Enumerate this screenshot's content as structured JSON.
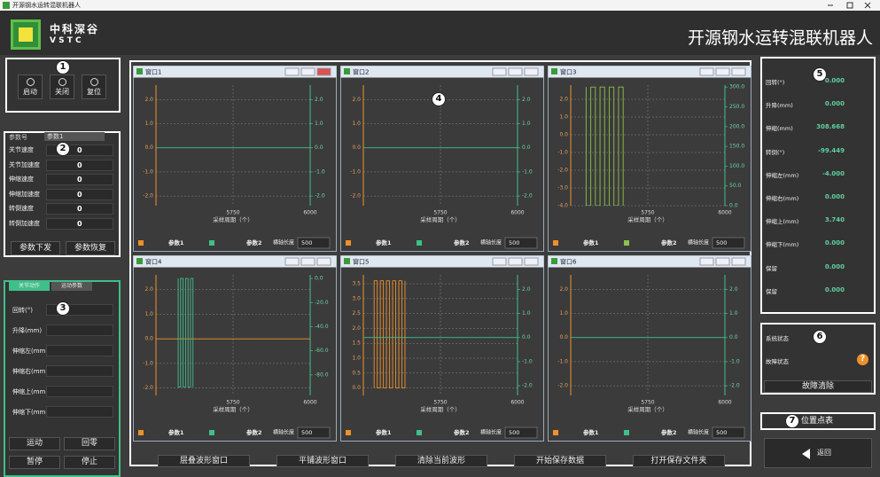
{
  "window_title": "开源钢水运转混联机器人",
  "header": {
    "logo_name": "中科深谷",
    "logo_abbr": "V S T C",
    "title": "开源钢水运转混联机器人"
  },
  "panel1": {
    "badge": "1",
    "buttons": [
      "启动",
      "关闭",
      "复位"
    ]
  },
  "panel2": {
    "badge": "2",
    "selector_label": "参数号",
    "selector_value": "参数1",
    "rows": [
      {
        "label": "关节速度",
        "value": "0"
      },
      {
        "label": "关节加速度",
        "value": "0"
      },
      {
        "label": "伸缩速度",
        "value": "0"
      },
      {
        "label": "伸缩加速度",
        "value": "0"
      },
      {
        "label": "转倒速度",
        "value": "0"
      },
      {
        "label": "转倒加速度",
        "value": "0"
      }
    ],
    "buttons": [
      "参数下发",
      "参数恢复"
    ]
  },
  "panel3": {
    "badge": "3",
    "tabs": [
      "关节动作",
      "运动参数"
    ],
    "rows": [
      "回转(°)",
      "升降(mm)",
      "伸缩左(mm)",
      "伸缩右(mm)",
      "伸缩上(mm)",
      "伸缩下(mm)"
    ],
    "buttons": [
      "运动",
      "回零",
      "暂停",
      "停止"
    ]
  },
  "waveforms": {
    "badge": "4",
    "buttons": [
      "层叠波形窗口",
      "平铺波形窗口",
      "清除当前波形",
      "开始保存数据",
      "打开保存文件夹"
    ],
    "windows": [
      {
        "title": "窗口1",
        "type": "line",
        "x_label": "采样周期（个）",
        "xlim": [
          5500,
          6000
        ],
        "xticks": [
          5750,
          6000
        ],
        "ylim": [
          -2.4,
          2.6
        ],
        "yticks": [
          {
            "value": 2,
            "label": "2.0"
          },
          {
            "value": 1,
            "label": "1.0"
          },
          {
            "value": 0,
            "label": "0.0"
          },
          {
            "value": -1,
            "label": "-1.0"
          },
          {
            "value": -2,
            "label": "-2.0"
          }
        ],
        "y2lim": [
          -2.4,
          2.6
        ],
        "y2ticks": [
          {
            "value": 2,
            "label": "2.0"
          },
          {
            "value": 1,
            "label": "1.0"
          },
          {
            "value": 0,
            "label": "0.0"
          },
          {
            "value": -1,
            "label": "-1.0"
          },
          {
            "value": -2,
            "label": "-2.0"
          }
        ],
        "series": [
          {
            "name": "参数1",
            "color": "#f0902a",
            "x": [],
            "values": []
          },
          {
            "name": "参数2",
            "color": "#3fbf8a",
            "axis": "y2",
            "x": [
              5500,
              6000
            ],
            "values": [
              0,
              0
            ]
          }
        ],
        "length_label": "横轴长度",
        "length_value": 500
      },
      {
        "title": "窗口2",
        "type": "line",
        "x_label": "采样周期（个）",
        "xlim": [
          5500,
          6000
        ],
        "xticks": [
          5750,
          6000
        ],
        "ylim": [
          -2.4,
          2.6
        ],
        "yticks": [
          {
            "value": 2,
            "label": "2.0"
          },
          {
            "value": 1,
            "label": "1.0"
          },
          {
            "value": 0,
            "label": "0.0"
          },
          {
            "value": -1,
            "label": "-1.0"
          },
          {
            "value": -2,
            "label": "-2.0"
          }
        ],
        "y2lim": [
          -2.4,
          2.6
        ],
        "y2ticks": [
          {
            "value": 2,
            "label": "2.0"
          },
          {
            "value": 1,
            "label": "1.0"
          },
          {
            "value": 0,
            "label": "0.0"
          },
          {
            "value": -1,
            "label": "-1.0"
          },
          {
            "value": -2,
            "label": "-2.0"
          }
        ],
        "series": [
          {
            "name": "参数1",
            "color": "#f0902a",
            "x": [],
            "values": []
          },
          {
            "name": "参数2",
            "color": "#3fbf8a",
            "axis": "y2",
            "x": [
              5500,
              6000
            ],
            "values": [
              0,
              0
            ]
          }
        ],
        "length_label": "横轴长度",
        "length_value": 500
      },
      {
        "title": "窗口3",
        "type": "line",
        "x_label": "采样周期（个）",
        "xlim": [
          5500,
          6000
        ],
        "xticks": [
          5750,
          6000
        ],
        "ylim": [
          -4,
          2.8
        ],
        "yticks": [
          {
            "value": 2,
            "label": "2.0"
          },
          {
            "value": 1,
            "label": "1.0"
          },
          {
            "value": 0,
            "label": "0.0"
          },
          {
            "value": -1,
            "label": "-1.0"
          },
          {
            "value": -2,
            "label": "-2.0"
          },
          {
            "value": -3,
            "label": "-3.0"
          },
          {
            "value": -4,
            "label": "-4.0"
          }
        ],
        "y2lim": [
          0,
          305
        ],
        "y2ticks": [
          {
            "value": 300,
            "label": "300.0"
          },
          {
            "value": 250,
            "label": "250.0"
          },
          {
            "value": 200,
            "label": "200.0"
          },
          {
            "value": 150,
            "label": "150.0"
          },
          {
            "value": 100,
            "label": "100.0"
          },
          {
            "value": 50,
            "label": "50.0"
          },
          {
            "value": 0,
            "label": "0.0"
          }
        ],
        "series": [
          {
            "name": "参数1",
            "color": "#f0902a",
            "x": [],
            "values": []
          },
          {
            "name": "参数2",
            "color": "#8fbf4a",
            "axis": "y2",
            "x": [
              5550,
              5550,
              5565,
              5565,
              5580,
              5580,
              5595,
              5595,
              5610,
              5610,
              5625,
              5625,
              5640,
              5640,
              5655,
              5655,
              5670,
              5670
            ],
            "values": [
              300,
              0,
              0,
              300,
              300,
              0,
              0,
              300,
              300,
              0,
              0,
              300,
              300,
              0,
              0,
              300,
              300,
              0
            ]
          }
        ],
        "length_label": "横轴长度",
        "length_value": 500
      },
      {
        "title": "窗口4",
        "type": "line",
        "x_label": "采样周期（个）",
        "xlim": [
          5500,
          6000
        ],
        "xticks": [
          5750,
          6000
        ],
        "ylim": [
          -2.3,
          2.6
        ],
        "yticks": [
          {
            "value": 2,
            "label": "2.0"
          },
          {
            "value": 1,
            "label": "1.0"
          },
          {
            "value": 0,
            "label": "0.0"
          },
          {
            "value": -1,
            "label": "-1.0"
          },
          {
            "value": -2,
            "label": "-2.0"
          }
        ],
        "y2lim": [
          -97,
          3
        ],
        "y2ticks": [
          {
            "value": 0,
            "label": "0.0"
          },
          {
            "value": -20,
            "label": "-20.0"
          },
          {
            "value": -40,
            "label": "-40.0"
          },
          {
            "value": -60,
            "label": "-60.0"
          },
          {
            "value": -80,
            "label": "-80.0"
          }
        ],
        "series": [
          {
            "name": "参数1",
            "color": "#f0902a",
            "x": [
              5500,
              6000
            ],
            "values": [
              0,
              0
            ]
          },
          {
            "name": "参数2",
            "color": "#3fbf8a",
            "axis": "y2",
            "x": [
              5572,
              5572,
              5580,
              5580,
              5588,
              5588,
              5596,
              5596,
              5604,
              5604,
              5612,
              5612,
              5620,
              5620
            ],
            "values": [
              0,
              -90,
              -90,
              0,
              0,
              -90,
              -90,
              0,
              0,
              -90,
              -90,
              0,
              0,
              -90
            ]
          }
        ],
        "length_label": "横轴长度",
        "length_value": 500
      },
      {
        "title": "窗口5",
        "type": "line",
        "x_label": "采样周期（个）",
        "xlim": [
          5500,
          6000
        ],
        "xticks": [
          5750,
          6000
        ],
        "ylim": [
          -0.25,
          3.8
        ],
        "yticks": [
          {
            "value": 3.5,
            "label": "3.5"
          },
          {
            "value": 3,
            "label": "3.0"
          },
          {
            "value": 2.5,
            "label": "2.5"
          },
          {
            "value": 2,
            "label": "2.0"
          },
          {
            "value": 1.5,
            "label": "1.5"
          },
          {
            "value": 1,
            "label": "1.0"
          },
          {
            "value": 0.5,
            "label": "0.5"
          },
          {
            "value": 0,
            "label": "0.0"
          }
        ],
        "y2lim": [
          -2.4,
          2.6
        ],
        "y2ticks": [
          {
            "value": 2,
            "label": "2.0"
          },
          {
            "value": 1,
            "label": "1.0"
          },
          {
            "value": 0,
            "label": "0.0"
          },
          {
            "value": -1,
            "label": "-1.0"
          },
          {
            "value": -2,
            "label": "-2.0"
          }
        ],
        "series": [
          {
            "name": "参数1",
            "color": "#f0902a",
            "x": [
              5535,
              5535,
              5545,
              5545,
              5555,
              5555,
              5565,
              5565,
              5575,
              5575,
              5585,
              5585,
              5595,
              5595,
              5605,
              5605,
              5615,
              5615,
              5625,
              5625,
              5635,
              5635
            ],
            "values": [
              0,
              3.6,
              3.6,
              0,
              0,
              3.6,
              3.6,
              0,
              0,
              3.6,
              3.6,
              0,
              0,
              3.6,
              3.6,
              0,
              0,
              3.6,
              3.6,
              0,
              0,
              3.6
            ]
          },
          {
            "name": "参数2",
            "color": "#3fbf8a",
            "axis": "y2",
            "x": [
              5500,
              6000
            ],
            "values": [
              0,
              0
            ]
          }
        ],
        "length_label": "横轴长度",
        "length_value": 500
      },
      {
        "title": "窗口6",
        "type": "line",
        "x_label": "采样周期（个）",
        "xlim": [
          5500,
          6000
        ],
        "xticks": [
          5750,
          6000
        ],
        "ylim": [
          -2.4,
          2.6
        ],
        "yticks": [
          {
            "value": 2,
            "label": "2.0"
          },
          {
            "value": 1,
            "label": "1.0"
          },
          {
            "value": 0,
            "label": "0.0"
          },
          {
            "value": -1,
            "label": "-1.0"
          },
          {
            "value": -2,
            "label": "-2.0"
          }
        ],
        "y2lim": [
          -2.4,
          2.6
        ],
        "y2ticks": [
          {
            "value": 2,
            "label": "2.0"
          },
          {
            "value": 1,
            "label": "1.0"
          },
          {
            "value": 0,
            "label": "0.0"
          },
          {
            "value": -1,
            "label": "-1.0"
          },
          {
            "value": -2,
            "label": "-2.0"
          }
        ],
        "series": [
          {
            "name": "参数1",
            "color": "#f0902a",
            "x": [],
            "values": []
          },
          {
            "name": "参数2",
            "color": "#3fbf8a",
            "axis": "y2",
            "x": [
              5500,
              6000
            ],
            "values": [
              0,
              0
            ]
          }
        ],
        "length_label": "横轴长度",
        "length_value": 500
      }
    ]
  },
  "panel5": {
    "badge": "5",
    "rows": [
      {
        "label": "回转(°)",
        "value": "0.000"
      },
      {
        "label": "升降(mm)",
        "value": "0.000"
      },
      {
        "label": "伸缩(mm)",
        "value": "308.668"
      },
      {
        "label": "转倒(°)",
        "value": "-99.449"
      },
      {
        "label": "伸缩左(mm)",
        "value": "-4.000"
      },
      {
        "label": "伸缩右(mm)",
        "value": "0.000"
      },
      {
        "label": "伸缩上(mm)",
        "value": "3.740"
      },
      {
        "label": "伸缩下(mm)",
        "value": "0.000"
      },
      {
        "label": "保留",
        "value": "0.000"
      },
      {
        "label": "保留",
        "value": "0.000"
      }
    ]
  },
  "panel6": {
    "badge": "6",
    "rows": [
      "系统状态",
      "故障状态"
    ],
    "fault_icon": "?",
    "button": "故障清除"
  },
  "panel7": {
    "badge": "7",
    "button": "位置点表"
  },
  "back_button": "返回"
}
